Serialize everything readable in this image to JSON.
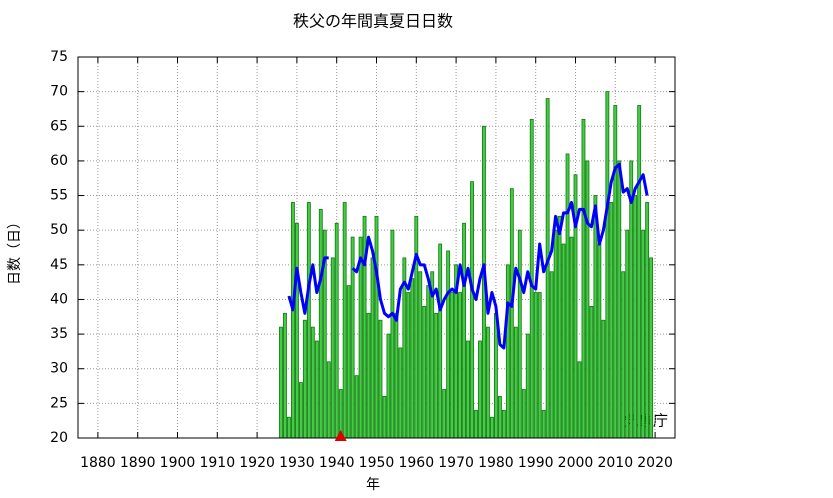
{
  "chart_data": {
    "type": "bar",
    "title": "秩父の年間真夏日日数",
    "x_label": "年",
    "y_label": "日数（日）",
    "annotation": "気象庁",
    "x": [
      1926,
      1927,
      1928,
      1929,
      1930,
      1931,
      1932,
      1933,
      1934,
      1935,
      1936,
      1937,
      1938,
      1939,
      1940,
      1941,
      1942,
      1943,
      1944,
      1945,
      1946,
      1947,
      1948,
      1949,
      1950,
      1951,
      1952,
      1953,
      1954,
      1955,
      1956,
      1957,
      1958,
      1959,
      1960,
      1961,
      1962,
      1963,
      1964,
      1965,
      1966,
      1967,
      1968,
      1969,
      1970,
      1971,
      1972,
      1973,
      1974,
      1975,
      1976,
      1977,
      1978,
      1979,
      1980,
      1981,
      1982,
      1983,
      1984,
      1985,
      1986,
      1987,
      1988,
      1989,
      1990,
      1991,
      1992,
      1993,
      1994,
      1995,
      1996,
      1997,
      1998,
      1999,
      2000,
      2001,
      2002,
      2003,
      2004,
      2005,
      2006,
      2007,
      2008,
      2009,
      2010,
      2011,
      2012,
      2013,
      2014,
      2015,
      2016,
      2017,
      2018,
      2019
    ],
    "values": [
      36,
      38,
      23,
      54,
      51,
      28,
      37,
      54,
      36,
      34,
      53,
      50,
      31,
      46,
      51,
      27,
      54,
      42,
      49,
      29,
      49,
      52,
      38,
      46,
      52,
      37,
      26,
      35,
      50,
      38,
      33,
      46,
      41,
      43,
      52,
      44,
      39,
      42,
      44,
      38,
      48,
      27,
      47,
      41,
      45,
      41,
      51,
      34,
      57,
      24,
      34,
      65,
      36,
      23,
      38,
      26,
      24,
      45,
      56,
      36,
      50,
      27,
      35,
      66,
      41,
      41,
      24,
      69,
      44,
      50,
      52,
      48,
      61,
      49,
      58,
      31,
      66,
      60,
      39,
      55,
      48,
      37,
      70,
      54,
      68,
      60,
      44,
      50,
      60,
      55,
      68,
      50,
      54,
      46
    ],
    "color": "#44cc44",
    "edge_color": "#117711",
    "line": {
      "color": "#0000ff",
      "x": [
        1928,
        1929,
        1930,
        1931,
        1932,
        1933,
        1934,
        1935,
        1936,
        1937,
        1938,
        1939,
        1940,
        1941,
        1942,
        1943,
        1944,
        1945,
        1946,
        1947,
        1948,
        1949,
        1950,
        1951,
        1952,
        1953,
        1954,
        1955,
        1956,
        1957,
        1958,
        1959,
        1960,
        1961,
        1962,
        1963,
        1964,
        1965,
        1966,
        1967,
        1968,
        1969,
        1970,
        1971,
        1972,
        1973,
        1974,
        1975,
        1976,
        1977,
        1978,
        1979,
        1980,
        1981,
        1982,
        1983,
        1984,
        1985,
        1986,
        1987,
        1988,
        1989,
        1990,
        1991,
        1992,
        1993,
        1994,
        1995,
        1996,
        1997,
        1998,
        1999,
        2000,
        2001,
        2002,
        2003,
        2004,
        2005,
        2006,
        2007,
        2008,
        2009,
        2010,
        2011,
        2012,
        2013,
        2014,
        2015,
        2016,
        2017,
        2018
      ],
      "values": [
        40.5,
        38.5,
        44.5,
        41,
        38,
        42,
        45,
        41,
        43,
        46,
        46,
        null,
        null,
        null,
        null,
        null,
        44.5,
        44,
        46,
        45,
        49,
        47,
        44,
        40,
        38,
        37.5,
        38,
        37,
        41.5,
        42.5,
        41.5,
        44,
        46.5,
        45,
        45,
        43,
        40.5,
        41.5,
        38.5,
        40,
        41,
        41.5,
        41,
        45,
        42,
        44.5,
        41.5,
        40,
        43,
        45,
        38,
        41,
        39,
        33.5,
        33,
        39.5,
        39,
        44.5,
        43,
        41,
        44,
        42,
        41.5,
        48,
        44,
        45.5,
        47,
        52,
        49.5,
        52.5,
        52.5,
        54,
        50.5,
        53,
        53,
        51,
        50.5,
        53.5,
        48,
        50,
        53.5,
        57,
        59,
        59.5,
        55.5,
        56,
        54,
        56,
        57,
        58,
        55
      ]
    },
    "marker_x": 1941,
    "marker_color": "#dd0000",
    "xlim": [
      1875,
      2025
    ],
    "xticks": [
      1880,
      1890,
      1900,
      1910,
      1920,
      1930,
      1940,
      1950,
      1960,
      1970,
      1980,
      1990,
      2000,
      2010,
      2020
    ],
    "ylim": [
      20,
      75
    ],
    "yticks": [
      20,
      25,
      30,
      35,
      40,
      45,
      50,
      55,
      60,
      65,
      70,
      75
    ],
    "grid": true
  }
}
